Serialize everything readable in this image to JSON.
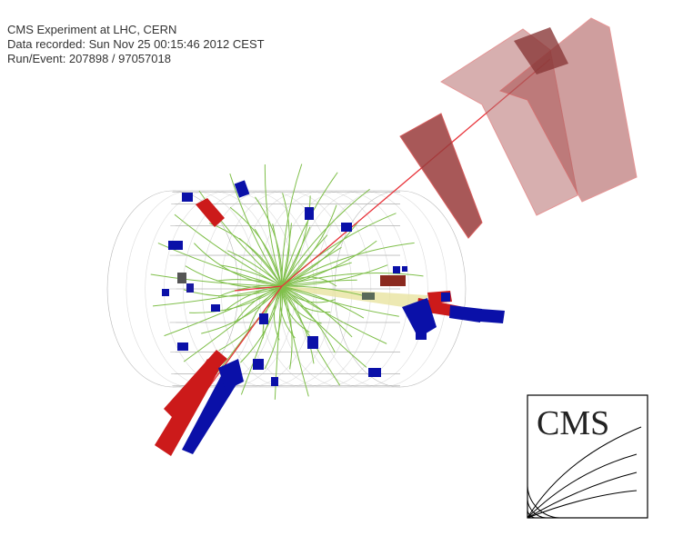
{
  "event_info": {
    "line1": "CMS Experiment at LHC, CERN",
    "line2": "Data recorded: Sun Nov 25 00:15:46 2012 CEST",
    "line3": "Run/Event: 207898 / 97057018"
  },
  "logo": {
    "text": "CMS"
  },
  "colors": {
    "tracks": "#7fbf4a",
    "muon_track": "#e8333a",
    "hcal": "#0a10a8",
    "ecal": "#cc1a1a",
    "muon_chamber": "#a84848",
    "detector_mesh": "#b8b8b8",
    "jet_cone": "#e8e3a0"
  }
}
